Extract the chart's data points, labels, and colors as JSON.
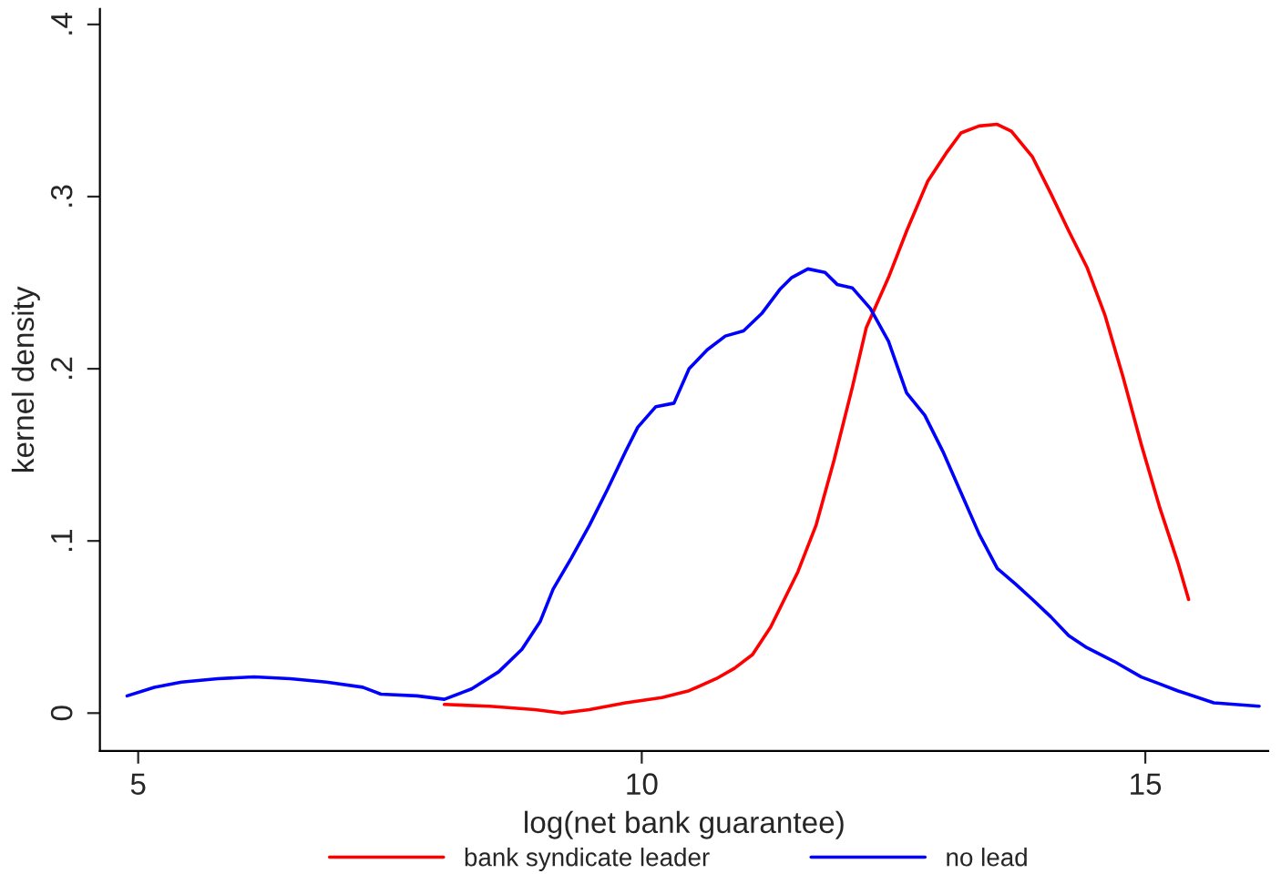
{
  "chart_data": {
    "type": "line",
    "xlabel": "log(net bank guarantee)",
    "ylabel": "kernel density",
    "xlim": [
      4.62,
      16.22
    ],
    "ylim": [
      -0.022,
      0.409
    ],
    "xticks": [
      5,
      10,
      15
    ],
    "yticks": [
      0,
      {
        "value": 0.1,
        "label": ".1"
      },
      {
        "value": 0.2,
        "label": ".2"
      },
      {
        "value": 0.3,
        "label": ".3"
      },
      {
        "value": 0.4,
        "label": ".4"
      }
    ],
    "grid": false,
    "legend": "bottom",
    "marker": "none",
    "line_style": "solid",
    "series": [
      {
        "name": "bank syndicate leader",
        "color": "#ff0000",
        "x": [
          8.04,
          8.49,
          8.94,
          9.21,
          9.48,
          9.84,
          10.2,
          10.47,
          10.74,
          10.92,
          11.1,
          11.28,
          11.55,
          11.73,
          11.91,
          12.09,
          12.23,
          12.45,
          12.63,
          12.84,
          13.02,
          13.17,
          13.35,
          13.53,
          13.67,
          13.88,
          14.06,
          14.24,
          14.42,
          14.6,
          14.78,
          14.96,
          15.14,
          15.32,
          15.43
        ],
        "values": [
          0.005,
          0.004,
          0.002,
          0.0,
          0.002,
          0.006,
          0.009,
          0.013,
          0.02,
          0.026,
          0.034,
          0.05,
          0.082,
          0.109,
          0.147,
          0.189,
          0.224,
          0.253,
          0.28,
          0.309,
          0.325,
          0.337,
          0.341,
          0.342,
          0.338,
          0.323,
          0.302,
          0.28,
          0.259,
          0.231,
          0.195,
          0.156,
          0.12,
          0.088,
          0.066
        ]
      },
      {
        "name": "no lead",
        "color": "#0000ff",
        "x": [
          4.89,
          5.16,
          5.43,
          5.79,
          6.15,
          6.51,
          6.87,
          7.23,
          7.41,
          7.77,
          8.04,
          8.31,
          8.58,
          8.81,
          8.99,
          9.12,
          9.3,
          9.48,
          9.66,
          9.84,
          9.96,
          10.14,
          10.32,
          10.47,
          10.65,
          10.83,
          11.01,
          11.19,
          11.37,
          11.49,
          11.65,
          11.82,
          11.94,
          12.09,
          12.27,
          12.45,
          12.63,
          12.81,
          12.99,
          13.17,
          13.35,
          13.53,
          13.71,
          13.88,
          14.06,
          14.24,
          14.42,
          14.69,
          14.96,
          15.32,
          15.68,
          16.13
        ],
        "values": [
          0.01,
          0.015,
          0.018,
          0.02,
          0.021,
          0.02,
          0.018,
          0.015,
          0.011,
          0.01,
          0.008,
          0.014,
          0.024,
          0.037,
          0.053,
          0.072,
          0.09,
          0.109,
          0.13,
          0.152,
          0.166,
          0.178,
          0.18,
          0.2,
          0.211,
          0.219,
          0.222,
          0.232,
          0.246,
          0.253,
          0.258,
          0.256,
          0.249,
          0.247,
          0.235,
          0.216,
          0.186,
          0.173,
          0.152,
          0.128,
          0.104,
          0.084,
          0.075,
          0.066,
          0.056,
          0.045,
          0.038,
          0.03,
          0.021,
          0.013,
          0.006,
          0.004
        ]
      }
    ]
  }
}
